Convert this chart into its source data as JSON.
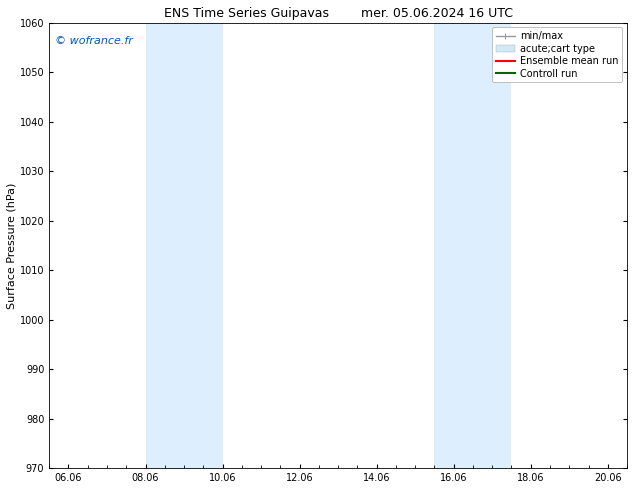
{
  "title_left": "ENS Time Series Guipavas",
  "title_right": "mer. 05.06.2024 16 UTC",
  "ylabel": "Surface Pressure (hPa)",
  "ylim": [
    970,
    1060
  ],
  "yticks": [
    970,
    980,
    990,
    1000,
    1010,
    1020,
    1030,
    1040,
    1050,
    1060
  ],
  "xtick_labels": [
    "06.06",
    "08.06",
    "10.06",
    "12.06",
    "14.06",
    "16.06",
    "18.06",
    "20.06"
  ],
  "xtick_positions": [
    0,
    2,
    4,
    6,
    8,
    10,
    12,
    14
  ],
  "xlim": [
    -0.5,
    14.5
  ],
  "bg_color": "#ffffff",
  "plot_bg_color": "#ffffff",
  "shaded_bands": [
    {
      "x_start": 2,
      "x_end": 4
    },
    {
      "x_start": 9.5,
      "x_end": 11.5
    }
  ],
  "shaded_color": "#ddeeff",
  "watermark": "© wofrance.fr",
  "watermark_color": "#0055cc",
  "legend_items": [
    {
      "label": "min/max",
      "color": "#999999",
      "linewidth": 1,
      "linestyle": "-",
      "type": "hline_with_ticks"
    },
    {
      "label": "acute;cart type",
      "color": "#cccccc",
      "linewidth": 8,
      "linestyle": "-",
      "type": "thick"
    },
    {
      "label": "Ensemble mean run",
      "color": "#ff0000",
      "linewidth": 1.5,
      "linestyle": "-",
      "type": "line"
    },
    {
      "label": "Controll run",
      "color": "#006600",
      "linewidth": 1.5,
      "linestyle": "-",
      "type": "line"
    }
  ],
  "title_fontsize": 9,
  "tick_fontsize": 7,
  "ylabel_fontsize": 8,
  "legend_fontsize": 7,
  "watermark_fontsize": 8
}
